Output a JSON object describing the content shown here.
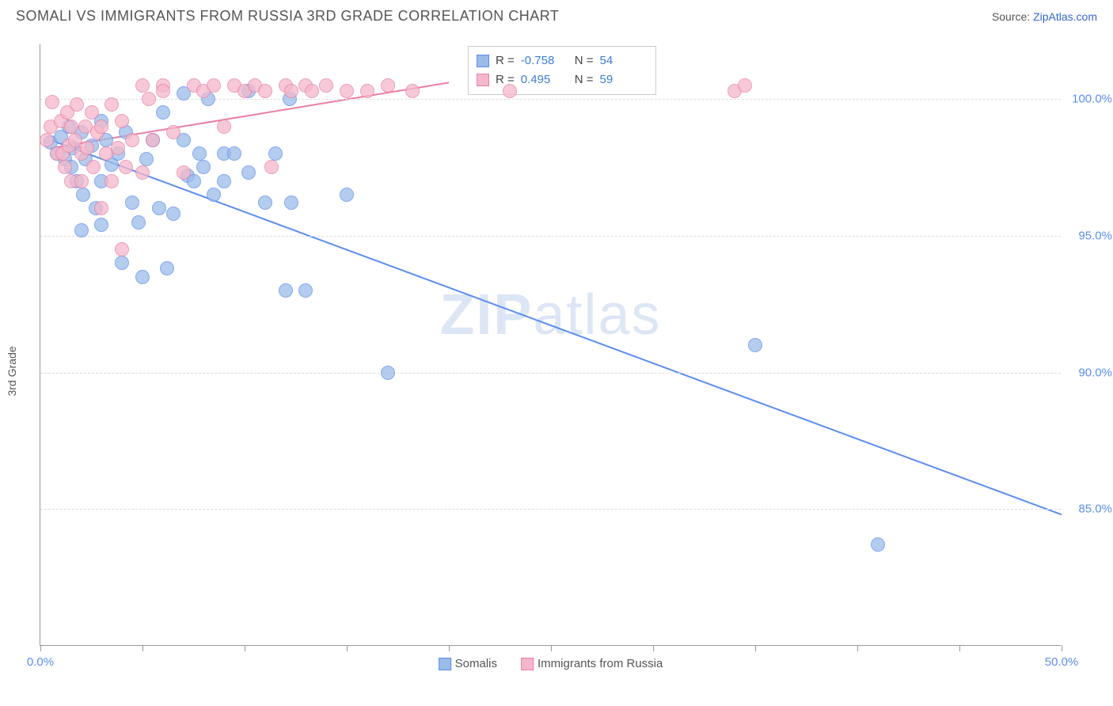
{
  "title": "SOMALI VS IMMIGRANTS FROM RUSSIA 3RD GRADE CORRELATION CHART",
  "source_prefix": "Source: ",
  "source_name": "ZipAtlas.com",
  "y_axis_label": "3rd Grade",
  "watermark_zip": "ZIP",
  "watermark_atlas": "atlas",
  "chart": {
    "type": "scatter",
    "xlim": [
      0,
      50
    ],
    "ylim": [
      80,
      102
    ],
    "background_color": "#ffffff",
    "grid_color": "#dddddd",
    "axis_color": "#999999",
    "x_ticks": [
      0,
      5,
      10,
      15,
      20,
      25,
      30,
      35,
      40,
      45,
      50
    ],
    "x_tick_labels": {
      "0": "0.0%",
      "50": "50.0%"
    },
    "y_ticks": [
      85,
      90,
      95,
      100
    ],
    "y_tick_labels": {
      "85": "85.0%",
      "90": "90.0%",
      "95": "95.0%",
      "100": "100.0%"
    },
    "marker_radius": 9,
    "marker_fill_opacity": 0.35,
    "line_width": 2,
    "label_fontsize": 15,
    "tick_color": "#5b8def"
  },
  "series": [
    {
      "key": "somalis",
      "label": "Somalis",
      "color_fill": "#9bbce8",
      "color_stroke": "#5b8def",
      "stats": {
        "R_label": "R =",
        "R": "-0.758",
        "N_label": "N =",
        "N": "54"
      },
      "trend": {
        "x1": 0.5,
        "y1": 98.5,
        "x2": 50,
        "y2": 84.8
      },
      "points": [
        [
          0.5,
          98.4
        ],
        [
          0.8,
          98.0
        ],
        [
          1.0,
          98.6
        ],
        [
          1.2,
          97.8
        ],
        [
          1.4,
          99.0
        ],
        [
          1.5,
          97.5
        ],
        [
          1.6,
          98.2
        ],
        [
          1.8,
          97.0
        ],
        [
          2.0,
          98.8
        ],
        [
          2.1,
          96.5
        ],
        [
          2.2,
          97.8
        ],
        [
          2.5,
          98.3
        ],
        [
          2.7,
          96.0
        ],
        [
          3.0,
          99.2
        ],
        [
          3.0,
          97.0
        ],
        [
          3.2,
          98.5
        ],
        [
          3.5,
          97.6
        ],
        [
          3.8,
          98.0
        ],
        [
          4.0,
          94.0
        ],
        [
          4.2,
          98.8
        ],
        [
          4.5,
          96.2
        ],
        [
          4.8,
          95.5
        ],
        [
          5.0,
          93.5
        ],
        [
          5.2,
          97.8
        ],
        [
          5.5,
          98.5
        ],
        [
          5.8,
          96.0
        ],
        [
          6.0,
          99.5
        ],
        [
          6.2,
          93.8
        ],
        [
          6.5,
          95.8
        ],
        [
          7.0,
          98.5
        ],
        [
          7.0,
          100.2
        ],
        [
          7.2,
          97.2
        ],
        [
          7.5,
          97.0
        ],
        [
          7.8,
          98.0
        ],
        [
          8.0,
          97.5
        ],
        [
          8.2,
          100.0
        ],
        [
          8.5,
          96.5
        ],
        [
          9.0,
          98.0
        ],
        [
          9.0,
          97.0
        ],
        [
          9.5,
          98.0
        ],
        [
          10.2,
          97.3
        ],
        [
          10.2,
          100.3
        ],
        [
          11.0,
          96.2
        ],
        [
          12.3,
          96.2
        ],
        [
          11.5,
          98.0
        ],
        [
          12.0,
          93.0
        ],
        [
          12.2,
          100.0
        ],
        [
          13.0,
          93.0
        ],
        [
          15.0,
          96.5
        ],
        [
          17.0,
          90.0
        ],
        [
          35.0,
          91.0
        ],
        [
          41.0,
          83.7
        ],
        [
          2.0,
          95.2
        ],
        [
          3.0,
          95.4
        ]
      ]
    },
    {
      "key": "russia",
      "label": "Immigrants from Russia",
      "color_fill": "#f5b8cb",
      "color_stroke": "#e87fa4",
      "stats": {
        "R_label": "R =",
        "R": "0.495",
        "N_label": "N =",
        "N": "59"
      },
      "trend": {
        "x1": 0.5,
        "y1": 98.2,
        "x2": 20,
        "y2": 100.6
      },
      "points": [
        [
          0.3,
          98.5
        ],
        [
          0.5,
          99.0
        ],
        [
          0.6,
          99.9
        ],
        [
          0.8,
          98.0
        ],
        [
          1.0,
          99.2
        ],
        [
          1.1,
          98.0
        ],
        [
          1.2,
          97.5
        ],
        [
          1.3,
          99.5
        ],
        [
          1.4,
          98.3
        ],
        [
          1.5,
          97.0
        ],
        [
          1.5,
          99.0
        ],
        [
          1.7,
          98.5
        ],
        [
          1.8,
          99.8
        ],
        [
          2.0,
          98.0
        ],
        [
          2.0,
          97.0
        ],
        [
          2.2,
          99.0
        ],
        [
          2.3,
          98.2
        ],
        [
          2.5,
          99.5
        ],
        [
          2.6,
          97.5
        ],
        [
          2.8,
          98.8
        ],
        [
          3.0,
          99.0
        ],
        [
          3.0,
          96.0
        ],
        [
          3.2,
          98.0
        ],
        [
          3.5,
          97.0
        ],
        [
          3.5,
          99.8
        ],
        [
          3.8,
          98.2
        ],
        [
          4.0,
          99.2
        ],
        [
          4.0,
          94.5
        ],
        [
          4.2,
          97.5
        ],
        [
          4.5,
          98.5
        ],
        [
          5.0,
          100.5
        ],
        [
          5.0,
          97.3
        ],
        [
          5.3,
          100.0
        ],
        [
          5.5,
          98.5
        ],
        [
          6.0,
          100.5
        ],
        [
          6.0,
          100.3
        ],
        [
          6.5,
          98.8
        ],
        [
          7.0,
          97.3
        ],
        [
          7.5,
          100.5
        ],
        [
          8.0,
          100.3
        ],
        [
          8.5,
          100.5
        ],
        [
          9.0,
          99.0
        ],
        [
          9.5,
          100.5
        ],
        [
          10.0,
          100.3
        ],
        [
          10.5,
          100.5
        ],
        [
          11.0,
          100.3
        ],
        [
          11.3,
          97.5
        ],
        [
          12.0,
          100.5
        ],
        [
          12.3,
          100.3
        ],
        [
          13.0,
          100.5
        ],
        [
          13.3,
          100.3
        ],
        [
          14.0,
          100.5
        ],
        [
          15.0,
          100.3
        ],
        [
          16.0,
          100.3
        ],
        [
          17.0,
          100.5
        ],
        [
          18.2,
          100.3
        ],
        [
          23.0,
          100.3
        ],
        [
          34.0,
          100.3
        ],
        [
          34.5,
          100.5
        ]
      ]
    }
  ]
}
